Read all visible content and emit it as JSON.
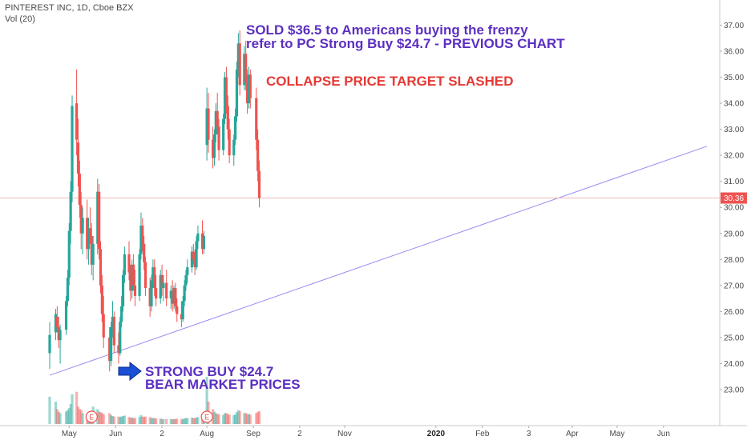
{
  "header": {
    "symbol_line": "PINTEREST INC, 1D, Cboe BZX",
    "vol_line": "Vol (20)"
  },
  "colors": {
    "up": "#26a69a",
    "down": "#ef5350",
    "trendline": "#9b8cf0",
    "price_line": "#f3b6b6",
    "price_tag": "#ef5350",
    "annotation_purple": "#5b2fc1",
    "annotation_red": "#e53935",
    "arrow": "#1a4fd6"
  },
  "chart_data": {
    "type": "candlestick",
    "title": "PINTEREST INC, 1D, Cboe BZX",
    "indicator": "Vol (20)",
    "ylim": [
      22.4,
      37.4
    ],
    "y_ticks": [
      "23.00",
      "24.00",
      "25.00",
      "26.00",
      "27.00",
      "28.00",
      "29.00",
      "30.00",
      "31.00",
      "32.00",
      "33.00",
      "34.00",
      "35.00",
      "36.00",
      "37.00"
    ],
    "x_ticks": [
      {
        "label": "May",
        "date": "2019-05-01",
        "bold": false
      },
      {
        "label": "Jun",
        "date": "2019-06-01",
        "bold": false
      },
      {
        "label": "2",
        "date": "2019-07-02",
        "bold": false
      },
      {
        "label": "Aug",
        "date": "2019-08-01",
        "bold": false
      },
      {
        "label": "Sep",
        "date": "2019-09-01",
        "bold": false
      },
      {
        "label": "2",
        "date": "2019-10-02",
        "bold": false
      },
      {
        "label": "Nov",
        "date": "2019-11-01",
        "bold": false
      },
      {
        "label": "2020",
        "date": "2020-01-01",
        "bold": true
      },
      {
        "label": "Feb",
        "date": "2020-02-01",
        "bold": false
      },
      {
        "label": "3",
        "date": "2020-03-03",
        "bold": false
      },
      {
        "label": "Apr",
        "date": "2020-04-01",
        "bold": false
      },
      {
        "label": "May",
        "date": "2020-05-01",
        "bold": false
      },
      {
        "label": "Jun",
        "date": "2020-06-01",
        "bold": false
      }
    ],
    "last_price": {
      "label": "30.36",
      "value": 30.36
    },
    "earnings_markers": [
      {
        "label": "E",
        "date": "2019-05-16"
      },
      {
        "label": "E",
        "date": "2019-08-01"
      }
    ],
    "trendline": {
      "start": {
        "date": "2019-04-18",
        "value": 23.55
      },
      "end": {
        "date": "2020-06-30",
        "value": 32.35
      }
    },
    "candles": [
      {
        "date": "2019-04-18",
        "o": 24.4,
        "h": 25.6,
        "l": 23.8,
        "c": 25.1,
        "v": 0.55
      },
      {
        "date": "2019-04-22",
        "o": 25.2,
        "h": 26.1,
        "l": 24.9,
        "c": 25.9,
        "v": 0.45
      },
      {
        "date": "2019-04-23",
        "o": 25.8,
        "h": 26.2,
        "l": 25.2,
        "c": 25.4,
        "v": 0.3
      },
      {
        "date": "2019-04-24",
        "o": 25.4,
        "h": 25.8,
        "l": 24.6,
        "c": 24.9,
        "v": 0.25
      },
      {
        "date": "2019-04-25",
        "o": 24.9,
        "h": 25.5,
        "l": 24.0,
        "c": 25.3,
        "v": 0.22
      },
      {
        "date": "2019-04-29",
        "o": 25.3,
        "h": 26.6,
        "l": 25.1,
        "c": 26.4,
        "v": 0.25
      },
      {
        "date": "2019-04-30",
        "o": 26.4,
        "h": 27.6,
        "l": 26.2,
        "c": 27.3,
        "v": 0.28
      },
      {
        "date": "2019-05-01",
        "o": 27.3,
        "h": 29.4,
        "l": 27.0,
        "c": 29.1,
        "v": 0.32
      },
      {
        "date": "2019-05-02",
        "o": 29.1,
        "h": 31.0,
        "l": 28.6,
        "c": 30.6,
        "v": 0.4
      },
      {
        "date": "2019-05-03",
        "o": 30.6,
        "h": 34.3,
        "l": 30.2,
        "c": 33.9,
        "v": 0.6
      },
      {
        "date": "2019-05-06",
        "o": 34.0,
        "h": 35.3,
        "l": 32.0,
        "c": 32.6,
        "v": 0.65
      },
      {
        "date": "2019-05-07",
        "o": 32.5,
        "h": 33.4,
        "l": 30.8,
        "c": 31.3,
        "v": 0.35
      },
      {
        "date": "2019-05-08",
        "o": 31.3,
        "h": 31.8,
        "l": 29.6,
        "c": 30.1,
        "v": 0.3
      },
      {
        "date": "2019-05-09",
        "o": 30.1,
        "h": 30.6,
        "l": 28.4,
        "c": 29.0,
        "v": 0.28
      },
      {
        "date": "2019-05-10",
        "o": 29.0,
        "h": 30.0,
        "l": 28.2,
        "c": 29.6,
        "v": 0.22
      },
      {
        "date": "2019-05-13",
        "o": 29.6,
        "h": 30.3,
        "l": 28.0,
        "c": 28.4,
        "v": 0.2
      },
      {
        "date": "2019-05-14",
        "o": 28.4,
        "h": 29.6,
        "l": 27.8,
        "c": 29.2,
        "v": 0.18
      },
      {
        "date": "2019-05-15",
        "o": 29.2,
        "h": 30.0,
        "l": 28.6,
        "c": 28.9,
        "v": 0.18
      },
      {
        "date": "2019-05-16",
        "o": 28.9,
        "h": 29.4,
        "l": 27.4,
        "c": 27.8,
        "v": 0.22
      },
      {
        "date": "2019-05-17",
        "o": 27.8,
        "h": 28.9,
        "l": 27.2,
        "c": 28.6,
        "v": 0.35
      },
      {
        "date": "2019-05-20",
        "o": 28.6,
        "h": 31.1,
        "l": 28.2,
        "c": 30.6,
        "v": 0.3
      },
      {
        "date": "2019-05-21",
        "o": 30.6,
        "h": 30.9,
        "l": 28.0,
        "c": 28.4,
        "v": 0.25
      },
      {
        "date": "2019-05-22",
        "o": 28.4,
        "h": 28.7,
        "l": 26.7,
        "c": 27.0,
        "v": 0.24
      },
      {
        "date": "2019-05-23",
        "o": 27.0,
        "h": 27.4,
        "l": 25.6,
        "c": 25.9,
        "v": 0.22
      },
      {
        "date": "2019-05-24",
        "o": 25.9,
        "h": 26.6,
        "l": 24.6,
        "c": 25.0,
        "v": 0.2
      },
      {
        "date": "2019-05-28",
        "o": 25.0,
        "h": 25.4,
        "l": 23.7,
        "c": 24.1,
        "v": 0.22
      },
      {
        "date": "2019-05-29",
        "o": 24.1,
        "h": 25.6,
        "l": 23.9,
        "c": 25.4,
        "v": 0.18
      },
      {
        "date": "2019-05-30",
        "o": 25.4,
        "h": 26.4,
        "l": 25.0,
        "c": 25.8,
        "v": 0.16
      },
      {
        "date": "2019-05-31",
        "o": 25.8,
        "h": 26.0,
        "l": 24.4,
        "c": 24.7,
        "v": 0.15
      },
      {
        "date": "2019-06-03",
        "o": 24.7,
        "h": 25.2,
        "l": 24.0,
        "c": 24.4,
        "v": 0.15
      },
      {
        "date": "2019-06-04",
        "o": 24.4,
        "h": 25.8,
        "l": 24.3,
        "c": 25.6,
        "v": 0.14
      },
      {
        "date": "2019-06-05",
        "o": 25.6,
        "h": 26.6,
        "l": 25.4,
        "c": 26.2,
        "v": 0.15
      },
      {
        "date": "2019-06-06",
        "o": 26.2,
        "h": 27.6,
        "l": 26.0,
        "c": 27.4,
        "v": 0.16
      },
      {
        "date": "2019-06-07",
        "o": 27.4,
        "h": 28.5,
        "l": 27.1,
        "c": 28.2,
        "v": 0.17
      },
      {
        "date": "2019-06-10",
        "o": 28.2,
        "h": 28.7,
        "l": 27.2,
        "c": 27.5,
        "v": 0.14
      },
      {
        "date": "2019-06-11",
        "o": 27.5,
        "h": 27.8,
        "l": 26.4,
        "c": 26.8,
        "v": 0.13
      },
      {
        "date": "2019-06-12",
        "o": 26.8,
        "h": 28.0,
        "l": 26.5,
        "c": 27.8,
        "v": 0.13
      },
      {
        "date": "2019-06-13",
        "o": 27.8,
        "h": 28.2,
        "l": 26.8,
        "c": 27.0,
        "v": 0.12
      },
      {
        "date": "2019-06-14",
        "o": 27.0,
        "h": 27.6,
        "l": 26.2,
        "c": 26.6,
        "v": 0.12
      },
      {
        "date": "2019-06-17",
        "o": 26.6,
        "h": 28.4,
        "l": 26.4,
        "c": 28.2,
        "v": 0.14
      },
      {
        "date": "2019-06-18",
        "o": 28.2,
        "h": 29.8,
        "l": 28.0,
        "c": 29.3,
        "v": 0.18
      },
      {
        "date": "2019-06-19",
        "o": 29.3,
        "h": 29.6,
        "l": 28.3,
        "c": 28.6,
        "v": 0.15
      },
      {
        "date": "2019-06-20",
        "o": 28.6,
        "h": 28.9,
        "l": 27.6,
        "c": 27.9,
        "v": 0.14
      },
      {
        "date": "2019-06-21",
        "o": 27.9,
        "h": 28.1,
        "l": 26.6,
        "c": 26.9,
        "v": 0.15
      },
      {
        "date": "2019-06-24",
        "o": 26.9,
        "h": 27.3,
        "l": 25.8,
        "c": 26.2,
        "v": 0.14
      },
      {
        "date": "2019-06-25",
        "o": 26.2,
        "h": 27.4,
        "l": 26.0,
        "c": 27.2,
        "v": 0.12
      },
      {
        "date": "2019-06-26",
        "o": 27.2,
        "h": 28.0,
        "l": 26.9,
        "c": 27.7,
        "v": 0.12
      },
      {
        "date": "2019-06-27",
        "o": 27.7,
        "h": 28.0,
        "l": 26.6,
        "c": 26.9,
        "v": 0.12
      },
      {
        "date": "2019-06-28",
        "o": 26.9,
        "h": 27.4,
        "l": 26.2,
        "c": 26.5,
        "v": 0.11
      },
      {
        "date": "2019-07-01",
        "o": 26.5,
        "h": 27.6,
        "l": 26.3,
        "c": 27.4,
        "v": 0.11
      },
      {
        "date": "2019-07-02",
        "o": 27.4,
        "h": 27.8,
        "l": 26.6,
        "c": 26.9,
        "v": 0.1
      },
      {
        "date": "2019-07-03",
        "o": 26.9,
        "h": 27.4,
        "l": 26.4,
        "c": 27.1,
        "v": 0.1
      },
      {
        "date": "2019-07-05",
        "o": 27.1,
        "h": 27.6,
        "l": 26.2,
        "c": 26.5,
        "v": 0.1
      },
      {
        "date": "2019-07-08",
        "o": 26.5,
        "h": 27.0,
        "l": 26.1,
        "c": 26.8,
        "v": 0.1
      },
      {
        "date": "2019-07-09",
        "o": 26.8,
        "h": 27.2,
        "l": 26.0,
        "c": 26.3,
        "v": 0.1
      },
      {
        "date": "2019-07-10",
        "o": 26.3,
        "h": 27.0,
        "l": 26.1,
        "c": 26.9,
        "v": 0.1
      },
      {
        "date": "2019-07-11",
        "o": 26.9,
        "h": 27.1,
        "l": 26.0,
        "c": 26.2,
        "v": 0.1
      },
      {
        "date": "2019-07-12",
        "o": 26.2,
        "h": 26.5,
        "l": 25.6,
        "c": 25.9,
        "v": 0.11
      },
      {
        "date": "2019-07-15",
        "o": 25.9,
        "h": 26.4,
        "l": 25.4,
        "c": 25.7,
        "v": 0.1
      },
      {
        "date": "2019-07-16",
        "o": 25.7,
        "h": 26.6,
        "l": 25.6,
        "c": 26.4,
        "v": 0.1
      },
      {
        "date": "2019-07-17",
        "o": 26.4,
        "h": 27.2,
        "l": 26.2,
        "c": 27.0,
        "v": 0.11
      },
      {
        "date": "2019-07-18",
        "o": 27.0,
        "h": 27.6,
        "l": 26.8,
        "c": 27.4,
        "v": 0.12
      },
      {
        "date": "2019-07-19",
        "o": 27.4,
        "h": 28.0,
        "l": 27.1,
        "c": 27.7,
        "v": 0.12
      },
      {
        "date": "2019-07-22",
        "o": 27.7,
        "h": 28.5,
        "l": 27.5,
        "c": 28.3,
        "v": 0.13
      },
      {
        "date": "2019-07-23",
        "o": 28.3,
        "h": 28.6,
        "l": 27.8,
        "c": 28.0,
        "v": 0.12
      },
      {
        "date": "2019-07-24",
        "o": 28.0,
        "h": 28.4,
        "l": 27.4,
        "c": 27.7,
        "v": 0.12
      },
      {
        "date": "2019-07-25",
        "o": 27.7,
        "h": 28.9,
        "l": 27.6,
        "c": 28.7,
        "v": 0.13
      },
      {
        "date": "2019-07-26",
        "o": 28.7,
        "h": 29.3,
        "l": 28.4,
        "c": 29.0,
        "v": 0.14
      },
      {
        "date": "2019-07-29",
        "o": 29.0,
        "h": 29.5,
        "l": 28.2,
        "c": 28.4,
        "v": 0.15
      },
      {
        "date": "2019-07-30",
        "o": 28.4,
        "h": 29.1,
        "l": 28.2,
        "c": 28.9,
        "v": 0.16
      },
      {
        "date": "2019-08-01",
        "o": 32.4,
        "h": 34.6,
        "l": 31.8,
        "c": 33.8,
        "v": 0.95
      },
      {
        "date": "2019-08-02",
        "o": 33.8,
        "h": 34.4,
        "l": 32.1,
        "c": 32.6,
        "v": 0.45
      },
      {
        "date": "2019-08-05",
        "o": 32.6,
        "h": 33.1,
        "l": 31.5,
        "c": 31.9,
        "v": 0.3
      },
      {
        "date": "2019-08-06",
        "o": 31.9,
        "h": 33.0,
        "l": 31.6,
        "c": 32.8,
        "v": 0.25
      },
      {
        "date": "2019-08-07",
        "o": 32.8,
        "h": 34.0,
        "l": 32.5,
        "c": 33.7,
        "v": 0.22
      },
      {
        "date": "2019-08-08",
        "o": 33.7,
        "h": 34.4,
        "l": 32.8,
        "c": 33.1,
        "v": 0.2
      },
      {
        "date": "2019-08-09",
        "o": 33.1,
        "h": 33.4,
        "l": 31.8,
        "c": 32.2,
        "v": 0.2
      },
      {
        "date": "2019-08-12",
        "o": 32.2,
        "h": 33.6,
        "l": 32.0,
        "c": 33.4,
        "v": 0.18
      },
      {
        "date": "2019-08-13",
        "o": 33.4,
        "h": 35.2,
        "l": 33.2,
        "c": 35.0,
        "v": 0.22
      },
      {
        "date": "2019-08-14",
        "o": 35.0,
        "h": 35.4,
        "l": 33.6,
        "c": 33.9,
        "v": 0.22
      },
      {
        "date": "2019-08-15",
        "o": 33.9,
        "h": 34.3,
        "l": 32.6,
        "c": 33.0,
        "v": 0.2
      },
      {
        "date": "2019-08-16",
        "o": 33.0,
        "h": 33.4,
        "l": 31.7,
        "c": 32.0,
        "v": 0.19
      },
      {
        "date": "2019-08-19",
        "o": 32.0,
        "h": 32.8,
        "l": 31.6,
        "c": 32.6,
        "v": 0.18
      },
      {
        "date": "2019-08-20",
        "o": 32.6,
        "h": 33.8,
        "l": 32.4,
        "c": 33.5,
        "v": 0.19
      },
      {
        "date": "2019-08-21",
        "o": 33.5,
        "h": 35.6,
        "l": 33.3,
        "c": 35.3,
        "v": 0.24
      },
      {
        "date": "2019-08-22",
        "o": 35.3,
        "h": 36.7,
        "l": 35.0,
        "c": 36.3,
        "v": 0.28
      },
      {
        "date": "2019-08-23",
        "o": 36.3,
        "h": 36.8,
        "l": 34.3,
        "c": 34.7,
        "v": 0.26
      },
      {
        "date": "2019-08-26",
        "o": 34.7,
        "h": 36.2,
        "l": 34.5,
        "c": 35.9,
        "v": 0.22
      },
      {
        "date": "2019-08-27",
        "o": 35.9,
        "h": 36.4,
        "l": 34.5,
        "c": 34.8,
        "v": 0.22
      },
      {
        "date": "2019-08-28",
        "o": 34.8,
        "h": 35.3,
        "l": 33.6,
        "c": 34.0,
        "v": 0.2
      },
      {
        "date": "2019-08-29",
        "o": 34.0,
        "h": 35.4,
        "l": 33.8,
        "c": 35.1,
        "v": 0.2
      },
      {
        "date": "2019-08-30",
        "o": 35.1,
        "h": 35.3,
        "l": 33.8,
        "c": 34.2,
        "v": 0.19
      },
      {
        "date": "2019-09-03",
        "o": 34.2,
        "h": 34.6,
        "l": 32.2,
        "c": 32.6,
        "v": 0.22
      },
      {
        "date": "2019-09-04",
        "o": 32.6,
        "h": 33.0,
        "l": 31.0,
        "c": 31.4,
        "v": 0.24
      },
      {
        "date": "2019-09-05",
        "o": 31.4,
        "h": 31.8,
        "l": 30.0,
        "c": 30.36,
        "v": 0.26
      }
    ]
  },
  "annotations": {
    "sold_line1": "SOLD $36.5 to Americans buying the frenzy",
    "sold_line2": "refer to PC Strong Buy $24.7 - PREVIOUS CHART",
    "collapse": "COLLAPSE PRICE TARGET SLASHED",
    "strong_buy_line1": "STRONG BUY $24.7",
    "strong_buy_line2": "BEAR MARKET PRICES"
  }
}
